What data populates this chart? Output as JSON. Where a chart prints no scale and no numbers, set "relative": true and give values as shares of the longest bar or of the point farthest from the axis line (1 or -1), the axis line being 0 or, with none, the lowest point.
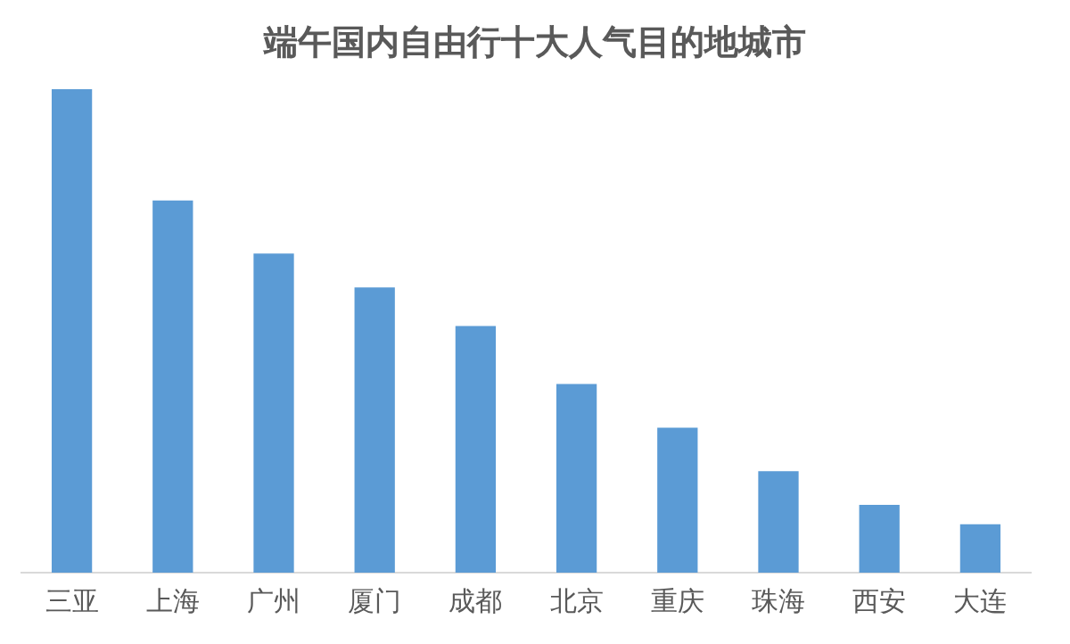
{
  "chart_data": {
    "type": "bar",
    "title": "端午国内自由行十大人气目的地城市",
    "categories": [
      "三亚",
      "上海",
      "广州",
      "厦门",
      "成都",
      "北京",
      "重庆",
      "珠海",
      "西安",
      "大连"
    ],
    "values": [
      1,
      0.77,
      0.66,
      0.59,
      0.51,
      0.39,
      0.3,
      0.21,
      0.14,
      0.1
    ],
    "color": "#5b9bd5",
    "relative": true,
    "grid": false,
    "legend": false
  }
}
